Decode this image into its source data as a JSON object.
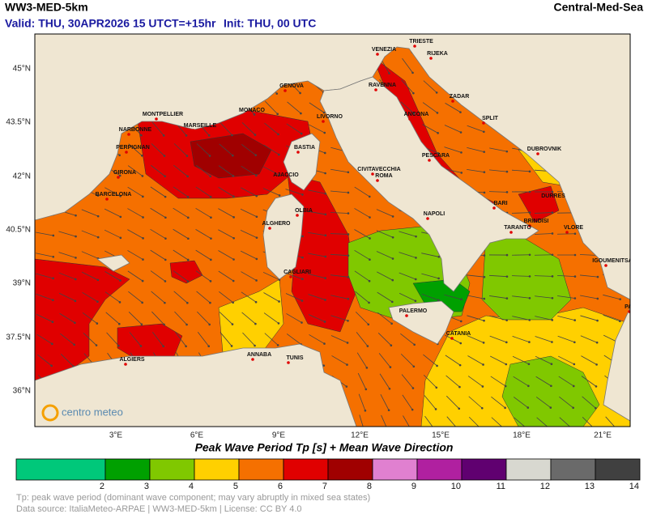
{
  "header": {
    "model": "WW3-MED-5km",
    "region": "Central-Med-Sea",
    "valid": "Valid: THU, 30APR2026 15 UTC",
    "lead": "T=+15hr",
    "init": "Init: THU, 00 UTC"
  },
  "map": {
    "lat_labels": [
      "45°N",
      "43.5°N",
      "42°N",
      "40.5°N",
      "39°N",
      "37.5°N",
      "36°N"
    ],
    "lon_labels": [
      "3°E",
      "6°E",
      "9°E",
      "12°E",
      "15°E",
      "18°E",
      "21°E"
    ],
    "cities": [
      "TRIESTE",
      "VENEZIA",
      "RIJEKA",
      "RAVENNA",
      "ZADAR",
      "GENOVA",
      "MONACO",
      "LIVORNO",
      "ANCONA",
      "SPLIT",
      "MONTPELLIER",
      "MARSEILLE",
      "NARBONNE",
      "PERPIGNAN",
      "BASTIA",
      "DUBROVNIK",
      "PESCARA",
      "CIVITAVECCHIA",
      "ROMA",
      "AJACCIO",
      "GIRONA",
      "BARCELONA",
      "DURRES",
      "BARI",
      "OLBIA",
      "NAPOLI",
      "BRINDISI",
      "ALGHERO",
      "TARANTO",
      "VLORE",
      "IGOUMENITSA",
      "CAGLIARI",
      "PATRAS",
      "PALERMO",
      "CATANIA",
      "ANNABA",
      "TUNIS",
      "ALGIERS"
    ],
    "logo": "centro meteo"
  },
  "legend": {
    "title": "Peak Wave Period Tp [s]  +  Mean Wave Direction",
    "colors": [
      "#00c87a",
      "#00a000",
      "#80c800",
      "#ffd000",
      "#f57000",
      "#e00000",
      "#a00000",
      "#e080d0",
      "#b020a0",
      "#600070",
      "#d8d8d0",
      "#6a6a6a",
      "#404040"
    ],
    "ticks": [
      2,
      3,
      4,
      5,
      6,
      7,
      8,
      9,
      10,
      11,
      12,
      13,
      14
    ]
  },
  "footer": {
    "note": "Tp: peak wave period (dominant wave component; may vary abruptly in mixed sea states)",
    "source": "Data source: ItaliaMeteo-ARPAE | WW3-MED-5km | License: CC BY 4.0"
  }
}
